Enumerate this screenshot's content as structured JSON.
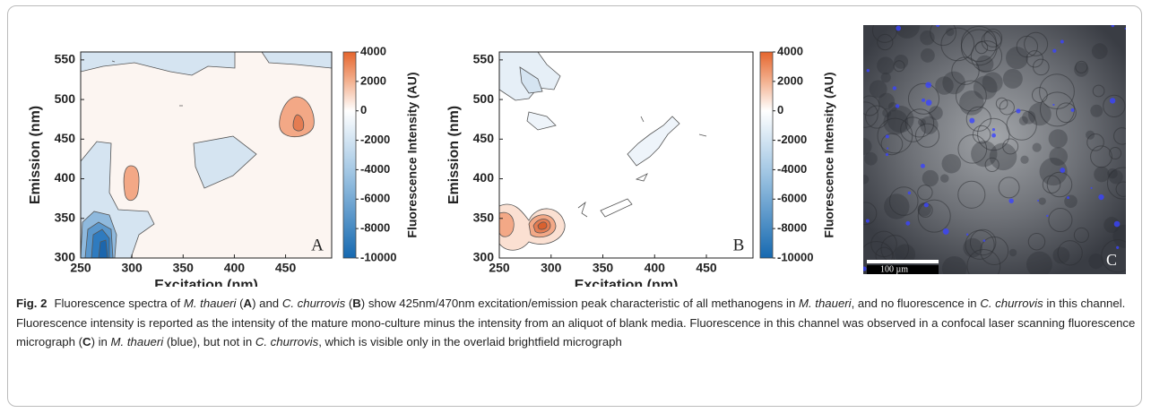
{
  "panels": [
    {
      "letter": "A",
      "xlabel": "Excitation (nm)",
      "ylabel": "Emission (nm)",
      "xlim": [
        250,
        495
      ],
      "ylim": [
        300,
        560
      ],
      "xticks": [
        250,
        300,
        350,
        400,
        450
      ],
      "yticks": [
        300,
        350,
        400,
        450,
        500,
        550
      ],
      "colorbar_label": "Fluorescence Intensity (AU)",
      "clim": [
        -10000,
        4000
      ],
      "cticks": [
        4000,
        2000,
        0,
        -2000,
        -4000,
        -6000,
        -8000,
        -10000
      ]
    },
    {
      "letter": "B",
      "xlabel": "Excitation (nm)",
      "ylabel": "Emission (nm)",
      "xlim": [
        250,
        495
      ],
      "ylim": [
        300,
        560
      ],
      "xticks": [
        250,
        300,
        350,
        400,
        450
      ],
      "yticks": [
        300,
        350,
        400,
        450,
        500,
        550
      ],
      "colorbar_label": "Fluorescence Intensity (AU)",
      "clim": [
        -10000,
        4000
      ],
      "cticks": [
        4000,
        2000,
        0,
        -2000,
        -4000,
        -6000,
        -8000,
        -10000
      ]
    }
  ],
  "micrograph": {
    "letter": "C",
    "scale_bar": "100 µm"
  },
  "caption": [
    {
      "text": "Fig. 2",
      "style": "bold"
    },
    {
      "text": "Fluorescence spectra of "
    },
    {
      "text": "M. thaueri",
      "style": "italic"
    },
    {
      "text": " ("
    },
    {
      "text": "A",
      "style": "bold"
    },
    {
      "text": ") and "
    },
    {
      "text": "C. churrovis",
      "style": "italic"
    },
    {
      "text": " ("
    },
    {
      "text": "B",
      "style": "bold"
    },
    {
      "text": ") show 425nm/470nm excitation/emission peak characteristic of all methanogens in "
    },
    {
      "text": "M. thaueri",
      "style": "italic"
    },
    {
      "text": ", and no fluorescence in "
    },
    {
      "text": "C. churrovis",
      "style": "italic"
    },
    {
      "text": " in this channel. Fluorescence intensity is reported as the intensity of the mature mono-culture minus the intensity from an aliquot of blank media. Fluorescence in this channel was observed in a confocal laser scanning fluorescence micrograph ("
    },
    {
      "text": "C",
      "style": "bold"
    },
    {
      "text": ") in "
    },
    {
      "text": "M. thaueri",
      "style": "italic"
    },
    {
      "text": " (blue), but not in "
    },
    {
      "text": "C. churrovis",
      "style": "italic"
    },
    {
      "text": ", which is visible only in the overlaid brightfield micrograph"
    }
  ]
}
